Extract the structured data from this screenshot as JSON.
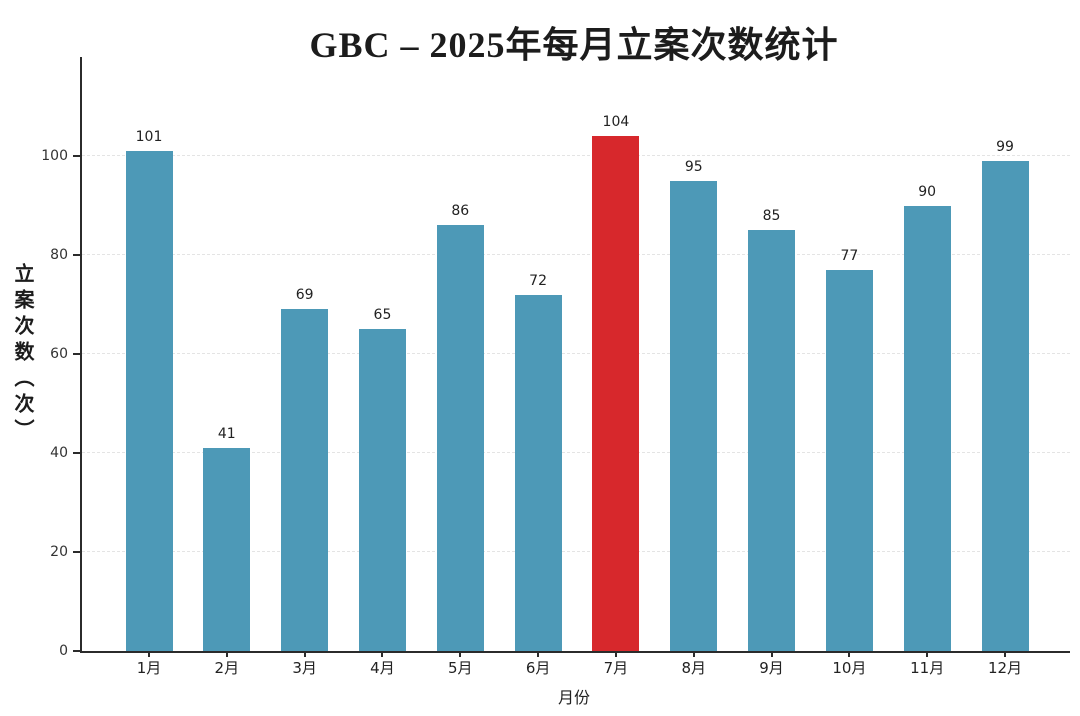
{
  "chart_data": {
    "type": "bar",
    "title": "GBC – 2025年每月立案次数统计",
    "xlabel": "月份",
    "ylabel": "立案次数（次）",
    "categories": [
      "1月",
      "2月",
      "3月",
      "4月",
      "5月",
      "6月",
      "7月",
      "8月",
      "9月",
      "10月",
      "11月",
      "12月"
    ],
    "values": [
      101,
      41,
      69,
      65,
      86,
      72,
      104,
      95,
      85,
      77,
      90,
      99
    ],
    "highlight_index": 6,
    "bar_color": "#4d99b7",
    "highlight_color": "#d7282c",
    "yticks": [
      0,
      20,
      40,
      60,
      80,
      100
    ],
    "ylim": [
      0,
      120
    ],
    "grid": "horizontal-dashed",
    "legend": "none"
  }
}
